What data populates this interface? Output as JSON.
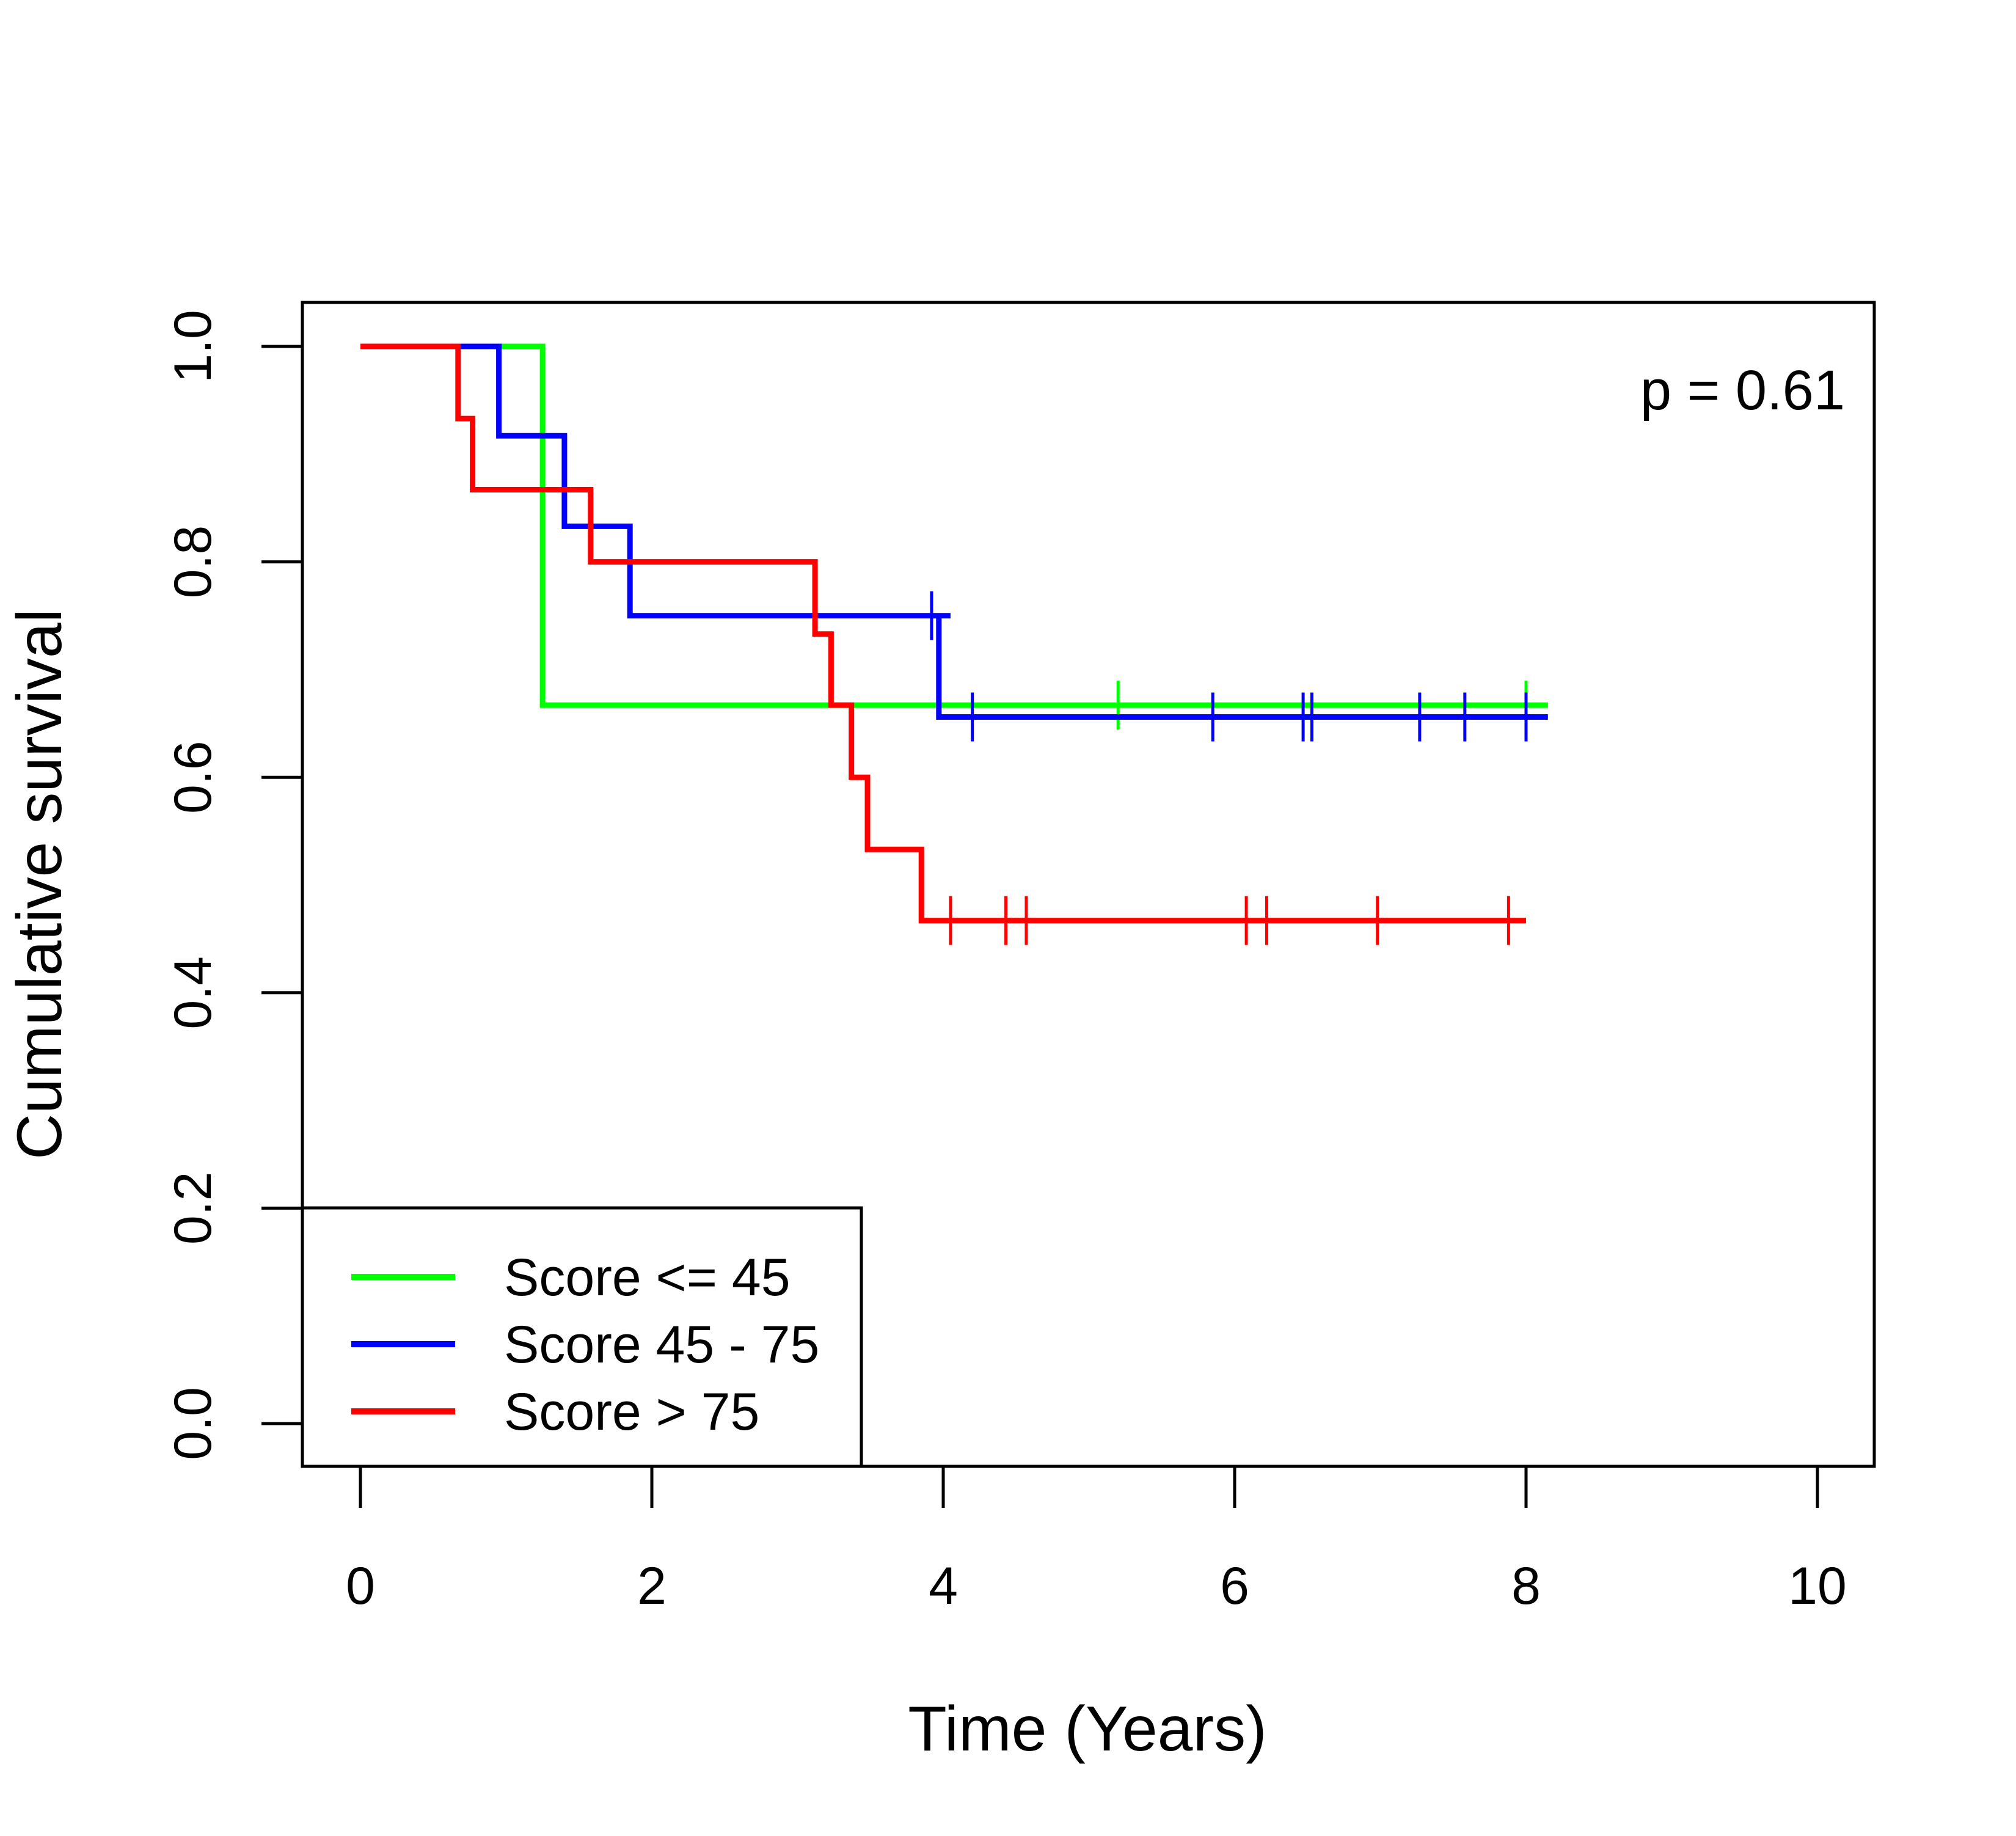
{
  "chart_data": {
    "type": "line",
    "step": true,
    "xlabel": "Time (Years)",
    "ylabel": "Cumulative survival",
    "xlim": [
      0,
      10
    ],
    "ylim": [
      0,
      1
    ],
    "x_ticks": [
      "0",
      "2",
      "4",
      "6",
      "8",
      "10"
    ],
    "y_ticks": [
      "0.0",
      "0.2",
      "0.4",
      "0.6",
      "0.8",
      "1.0"
    ],
    "grid": false,
    "annotation": "p = 0.61",
    "legend_position": "bottom-left",
    "series": [
      {
        "name": "Score <= 45",
        "color": "#00ff00",
        "steps": [
          [
            0,
            1.0
          ],
          [
            1.25,
            1.0
          ],
          [
            1.25,
            0.667
          ],
          [
            8.15,
            0.667
          ]
        ],
        "censored": [
          [
            5.2,
            0.667
          ],
          [
            8.0,
            0.667
          ]
        ]
      },
      {
        "name": "Score 45 - 75",
        "color": "#0000ff",
        "steps": [
          [
            0,
            1.0
          ],
          [
            0.95,
            1.0
          ],
          [
            0.95,
            0.917
          ],
          [
            1.4,
            0.917
          ],
          [
            1.4,
            0.833
          ],
          [
            1.85,
            0.833
          ],
          [
            1.85,
            0.75
          ],
          [
            4.05,
            0.75
          ],
          [
            4.05,
            0.75
          ],
          [
            3.97,
            0.75
          ],
          [
            3.97,
            0.656
          ],
          [
            8.15,
            0.656
          ]
        ],
        "censored": [
          [
            3.92,
            0.75
          ],
          [
            4.2,
            0.656
          ],
          [
            5.85,
            0.656
          ],
          [
            6.47,
            0.656
          ],
          [
            6.53,
            0.656
          ],
          [
            7.27,
            0.656
          ],
          [
            7.58,
            0.656
          ],
          [
            8.0,
            0.656
          ]
        ]
      },
      {
        "name": "Score > 75",
        "color": "#ff0000",
        "steps": [
          [
            0,
            1.0
          ],
          [
            0.67,
            1.0
          ],
          [
            0.67,
            0.933
          ],
          [
            0.77,
            0.933
          ],
          [
            0.77,
            0.867
          ],
          [
            1.58,
            0.867
          ],
          [
            1.58,
            0.8
          ],
          [
            3.12,
            0.8
          ],
          [
            3.12,
            0.733
          ],
          [
            3.23,
            0.733
          ],
          [
            3.23,
            0.667
          ],
          [
            3.37,
            0.667
          ],
          [
            3.37,
            0.6
          ],
          [
            3.48,
            0.6
          ],
          [
            3.48,
            0.533
          ],
          [
            3.85,
            0.533
          ],
          [
            3.85,
            0.467
          ],
          [
            8.0,
            0.467
          ]
        ],
        "censored": [
          [
            4.05,
            0.467
          ],
          [
            4.43,
            0.467
          ],
          [
            4.57,
            0.467
          ],
          [
            6.08,
            0.467
          ],
          [
            6.22,
            0.467
          ],
          [
            6.98,
            0.467
          ],
          [
            7.88,
            0.467
          ]
        ]
      }
    ]
  }
}
